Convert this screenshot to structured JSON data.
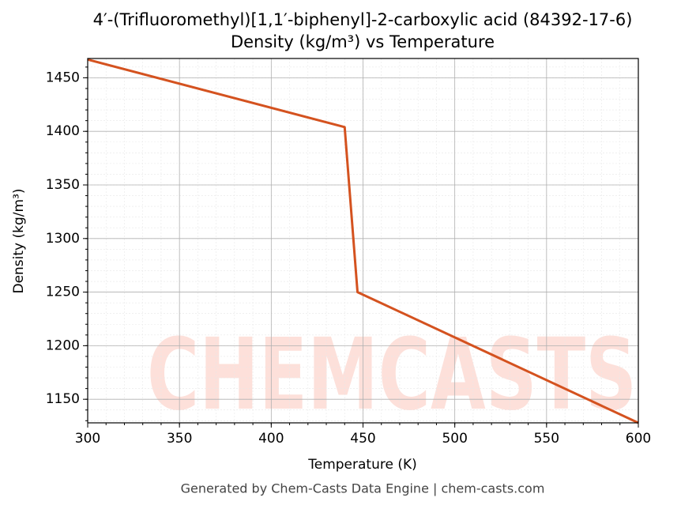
{
  "chart_data": {
    "type": "line",
    "title": "4′-(Trifluoromethyl)[1,1′-biphenyl]-2-carboxylic acid (84392-17-6)",
    "subtitle": "Density (kg/m³) vs Temperature",
    "x_label": "Temperature (K)",
    "y_label": "Density (kg/m³)",
    "watermark": "CHEMCASTS",
    "footer": "Generated by Chem-Casts Data Engine | chem-casts.com",
    "x": [
      300,
      440,
      447,
      600
    ],
    "series": [
      {
        "name": "Density",
        "color": "#d4521f",
        "values": [
          1467,
          1404,
          1250,
          1128
        ]
      }
    ],
    "xlim": [
      300,
      600
    ],
    "xticks": [
      300,
      350,
      400,
      450,
      500,
      550,
      600
    ],
    "ylim": [
      1128,
      1468
    ],
    "yticks": [
      1150,
      1200,
      1250,
      1300,
      1350,
      1400,
      1450
    ],
    "grid": true,
    "minor_grid": true
  }
}
